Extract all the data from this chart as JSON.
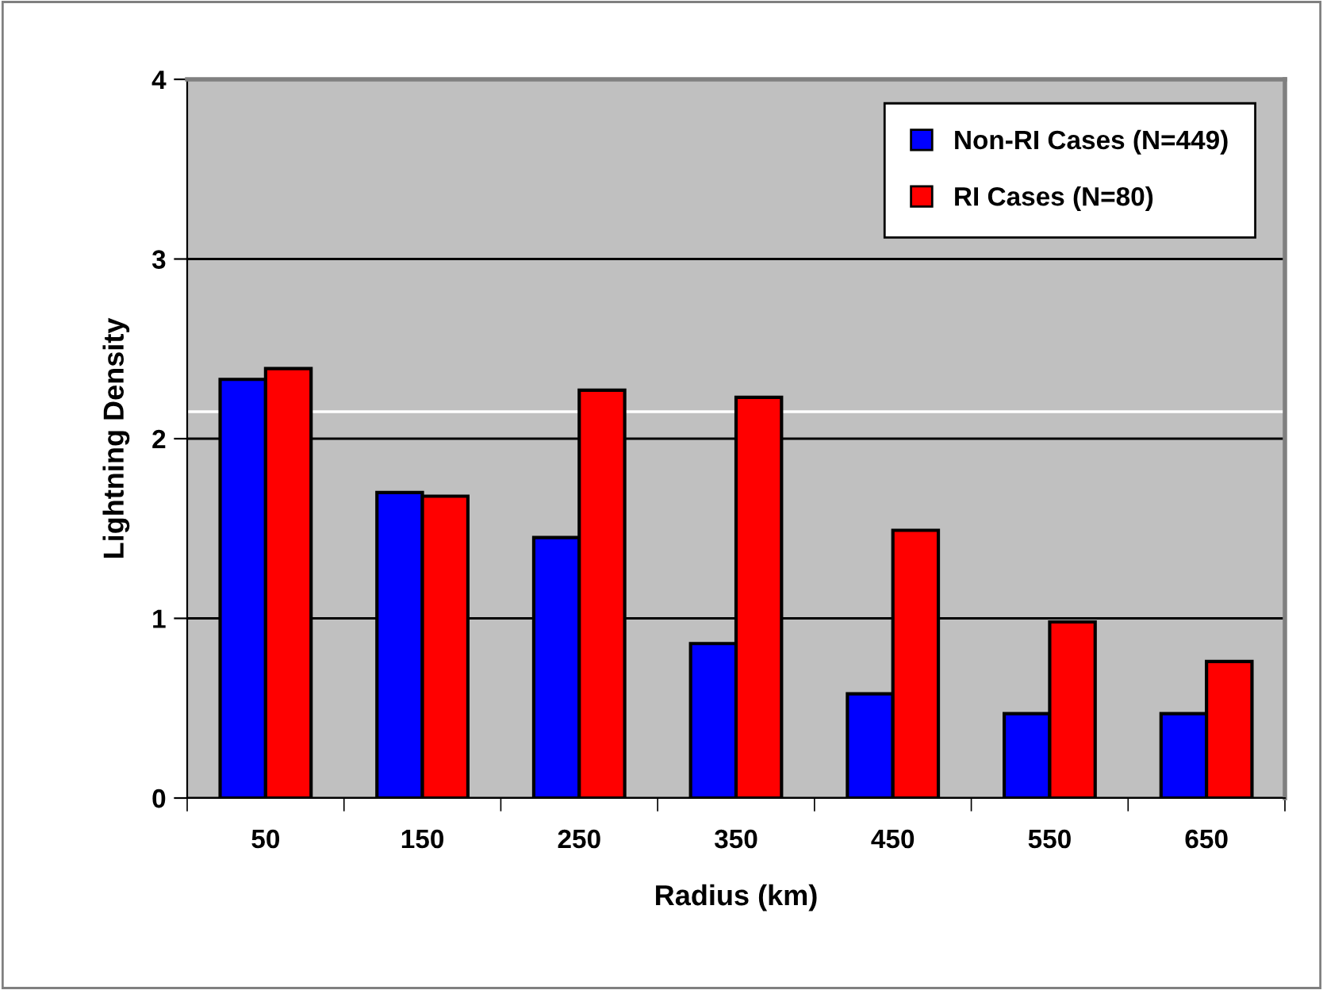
{
  "chart_data": {
    "type": "bar",
    "xlabel": "Radius (km)",
    "ylabel": "Lightning Density",
    "categories": [
      "50",
      "150",
      "250",
      "350",
      "450",
      "550",
      "650"
    ],
    "series": [
      {
        "name": "Non-RI Cases (N=449)",
        "color": "#0000ff",
        "values": [
          2.33,
          1.7,
          1.45,
          0.86,
          0.58,
          0.47,
          0.47
        ]
      },
      {
        "name": "RI Cases (N=80)",
        "color": "#ff0000",
        "values": [
          2.39,
          1.68,
          2.27,
          2.23,
          1.49,
          0.98,
          0.76
        ]
      }
    ],
    "ylim": [
      0,
      4
    ],
    "yticks": [
      0,
      1,
      2,
      3,
      4
    ],
    "grid": "y",
    "legend": "top right",
    "ref_lines": [
      {
        "axis": "y",
        "value": 2.15,
        "color": "#ffffff"
      }
    ]
  }
}
